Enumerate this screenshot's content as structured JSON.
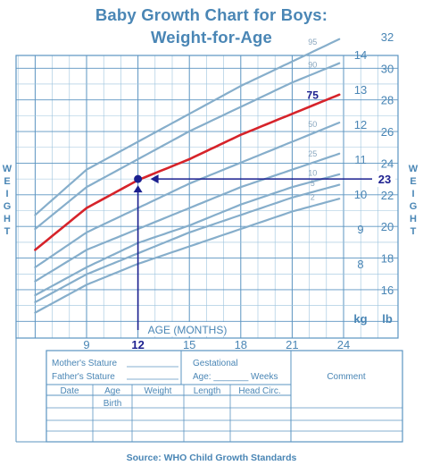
{
  "title_line1": "Baby Growth Chart for Boys:",
  "title_line2": "Weight-for-Age",
  "source": "Source: WHO Child Growth Standards",
  "colors": {
    "grid": "#5b94c1",
    "grid_light": "#9cc3de",
    "curve": "#86aecb",
    "highlight": "#d6232a",
    "marker": "#1b1f8f",
    "text": "#4a86b5"
  },
  "chart_data": {
    "type": "line",
    "title": "Baby Growth Chart for Boys: Weight-for-Age",
    "xlabel": "AGE (MONTHS)",
    "ylabel": "WEIGHT",
    "x_ticks": [
      "9",
      "12",
      "15",
      "18",
      "21",
      "24"
    ],
    "xlim": [
      6,
      24
    ],
    "kg_label": "kg",
    "lb_label": "lb",
    "kg_ticks": [
      "8",
      "9",
      "10",
      "11",
      "12",
      "13",
      "14"
    ],
    "lb_ticks": [
      "16",
      "18",
      "20",
      "22",
      "24",
      "26",
      "28",
      "30",
      "32"
    ],
    "ylim_kg": [
      6.7,
      14.8
    ],
    "series": [
      {
        "name": "2",
        "x": [
          6,
          9,
          12,
          15,
          18,
          21,
          24
        ],
        "y": [
          6.6,
          7.4,
          8.0,
          8.5,
          9.0,
          9.5,
          9.9
        ]
      },
      {
        "name": "5",
        "x": [
          6,
          9,
          12,
          15,
          18,
          21,
          24
        ],
        "y": [
          6.9,
          7.7,
          8.3,
          8.9,
          9.4,
          9.9,
          10.3
        ]
      },
      {
        "name": "10",
        "x": [
          6,
          9,
          12,
          15,
          18,
          21,
          24
        ],
        "y": [
          7.1,
          7.9,
          8.6,
          9.1,
          9.7,
          10.2,
          10.6
        ]
      },
      {
        "name": "25",
        "x": [
          6,
          9,
          12,
          15,
          18,
          21,
          24
        ],
        "y": [
          7.5,
          8.4,
          9.0,
          9.6,
          10.2,
          10.7,
          11.2
        ]
      },
      {
        "name": "50",
        "x": [
          6,
          9,
          12,
          15,
          18,
          21,
          24
        ],
        "y": [
          7.9,
          8.9,
          9.6,
          10.3,
          10.9,
          11.5,
          12.1
        ]
      },
      {
        "name": "75",
        "x": [
          6,
          9,
          12,
          15,
          18,
          21,
          24
        ],
        "y": [
          8.4,
          9.6,
          10.4,
          11.0,
          11.7,
          12.3,
          12.9
        ],
        "highlight": true
      },
      {
        "name": "90",
        "x": [
          6,
          9,
          12,
          15,
          18,
          21,
          24
        ],
        "y": [
          9.0,
          10.2,
          11.0,
          11.8,
          12.5,
          13.2,
          13.8
        ]
      },
      {
        "name": "95",
        "x": [
          6,
          9,
          12,
          15,
          18,
          21,
          24
        ],
        "y": [
          9.4,
          10.7,
          11.5,
          12.3,
          13.1,
          13.8,
          14.5
        ]
      }
    ],
    "example_point": {
      "x": 12,
      "y_lb": 23,
      "x_label": "12",
      "y_label": "23"
    },
    "grid": true
  },
  "record_table": {
    "mothers_stature": "Mother's Stature",
    "fathers_stature": "Father's Stature",
    "gestational": "Gestational",
    "age_weeks": "Age: _______ Weeks",
    "comment": "Comment",
    "headers": [
      "Date",
      "Age",
      "Weight",
      "Length",
      "Head Circ."
    ],
    "birth": "Birth"
  }
}
